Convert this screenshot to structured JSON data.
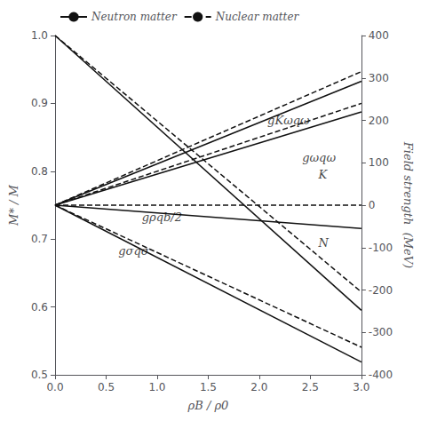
{
  "chart_data": {
    "type": "line",
    "xlabel": "ρB / ρ0",
    "ylabel": "M* / M",
    "y2label": "Field strength  (MeV)",
    "xlim": [
      0.0,
      3.0
    ],
    "xticks": [
      {
        "value": 0.0,
        "label": "0.0"
      },
      0.5,
      {
        "value": 1.0,
        "label": "1.0"
      },
      1.5,
      {
        "value": 2.0,
        "label": "2.0"
      },
      2.5,
      {
        "value": 3.0,
        "label": "3.0"
      }
    ],
    "ylim": [
      0.5,
      1.0
    ],
    "yticks": [
      0.5,
      0.6,
      0.7,
      0.8,
      0.9,
      {
        "value": 1.0,
        "label": "1.0"
      }
    ],
    "y2lim": [
      -400,
      400
    ],
    "y2ticks": [
      -400,
      -300,
      -200,
      -100,
      0,
      100,
      200,
      300,
      400
    ],
    "grid": false,
    "legend": "upper left",
    "series": [
      {
        "name": "Neutron matter",
        "color": "#111111",
        "line_style": "solid",
        "axis": "y",
        "x": [
          0.0,
          3.0
        ],
        "values": [
          1.0,
          0.595
        ]
      },
      {
        "name": "Nuclear matter",
        "color": "#111111",
        "line_style": "dashed",
        "axis": "y",
        "x": [
          0.0,
          3.0
        ],
        "values": [
          1.0,
          0.622
        ]
      },
      {
        "name": "Neutron matter",
        "color": "#111111",
        "line_style": "solid",
        "axis": "y2",
        "x": [
          0.0,
          3.0
        ],
        "values": [
          0.0,
          -370
        ]
      },
      {
        "name": "Nuclear matter",
        "color": "#111111",
        "line_style": "dashed",
        "axis": "y2",
        "x": [
          0.0,
          3.0
        ],
        "values": [
          0.0,
          -335
        ]
      },
      {
        "name": "Neutron matter",
        "color": "#111111",
        "line_style": "solid",
        "axis": "y2",
        "x": [
          0.0,
          3.0
        ],
        "values": [
          0.0,
          220
        ]
      },
      {
        "name": "Nuclear matter",
        "color": "#111111",
        "line_style": "dashed",
        "axis": "y2",
        "x": [
          0.0,
          3.0
        ],
        "values": [
          0.0,
          240
        ]
      },
      {
        "name": "Neutron matter",
        "color": "#111111",
        "line_style": "solid",
        "axis": "y2",
        "x": [
          0.0,
          3.0
        ],
        "values": [
          0.0,
          292
        ]
      },
      {
        "name": "Nuclear matter",
        "color": "#111111",
        "line_style": "dashed",
        "axis": "y2",
        "x": [
          0.0,
          3.0
        ],
        "values": [
          0.0,
          315
        ]
      },
      {
        "name": "Neutron matter",
        "color": "#111111",
        "line_style": "solid",
        "axis": "y2",
        "x": [
          0.0,
          3.0
        ],
        "values": [
          0.0,
          -55
        ]
      },
      {
        "name": "Nuclear matter",
        "color": "#111111",
        "line_style": "dashed",
        "axis": "y2",
        "x": [
          0.0,
          3.0
        ],
        "values": [
          0.0,
          0.0
        ]
      }
    ],
    "annotations": [
      {
        "text": "gKωqω",
        "x": 2.08,
        "y": 200,
        "axis": "y2"
      },
      {
        "text": "gωqω",
        "x": 2.42,
        "y": 113,
        "axis": "y2"
      },
      {
        "text": "gσqσ",
        "x": 0.62,
        "y": -108,
        "axis": "y2"
      },
      {
        "text": "gρqb/2",
        "x": 0.85,
        "y": -28,
        "axis": "y2"
      },
      {
        "text": "K",
        "x": 2.58,
        "y": 73,
        "axis": "y2"
      },
      {
        "text": "N",
        "x": 2.58,
        "y": -90,
        "axis": "y2"
      }
    ]
  }
}
